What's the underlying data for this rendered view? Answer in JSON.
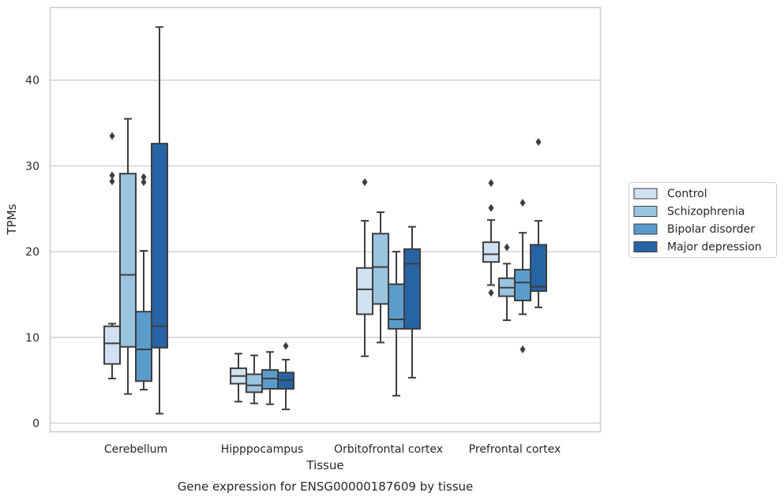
{
  "chart_data": {
    "type": "boxplot",
    "title": "",
    "caption": "Gene expression for ENSG00000187609 by tissue",
    "xlabel": "Tissue",
    "ylabel": "TPMs",
    "ylim": [
      -1,
      48
    ],
    "yticks": [
      0,
      10,
      20,
      30,
      40
    ],
    "grid": "horizontal",
    "legend_position": "right",
    "categories": [
      "Cerebellum",
      "Hipppocampus",
      "Orbitofrontal cortex",
      "Prefrontal cortex"
    ],
    "series": [
      {
        "name": "Control",
        "color": "#d0e1f2",
        "boxes": [
          {
            "whislo": 5.2,
            "q1": 6.9,
            "med": 9.3,
            "q3": 11.3,
            "whishi": 11.6,
            "fliers": [
              28.2,
              28.9,
              33.5
            ]
          },
          {
            "whislo": 2.5,
            "q1": 4.6,
            "med": 5.5,
            "q3": 6.4,
            "whishi": 8.1,
            "fliers": []
          },
          {
            "whislo": 7.8,
            "q1": 12.7,
            "med": 15.6,
            "q3": 18.1,
            "whishi": 23.6,
            "fliers": [
              28.1
            ]
          },
          {
            "whislo": 16.1,
            "q1": 18.8,
            "med": 19.7,
            "q3": 21.1,
            "whishi": 23.7,
            "fliers": [
              15.2,
              25.1,
              28.0
            ]
          }
        ]
      },
      {
        "name": "Schizophrenia",
        "color": "#9ac4e0",
        "boxes": [
          {
            "whislo": 3.4,
            "q1": 8.9,
            "med": 17.3,
            "q3": 29.1,
            "whishi": 35.5,
            "fliers": []
          },
          {
            "whislo": 2.3,
            "q1": 3.6,
            "med": 4.4,
            "q3": 5.7,
            "whishi": 7.9,
            "fliers": []
          },
          {
            "whislo": 9.4,
            "q1": 13.9,
            "med": 18.2,
            "q3": 22.1,
            "whishi": 24.6,
            "fliers": []
          },
          {
            "whislo": 12.0,
            "q1": 14.8,
            "med": 15.8,
            "q3": 16.9,
            "whishi": 18.6,
            "fliers": [
              20.5
            ]
          }
        ]
      },
      {
        "name": "Bipolar disorder",
        "color": "#5a9ccc",
        "boxes": [
          {
            "whislo": 3.9,
            "q1": 4.9,
            "med": 8.6,
            "q3": 13.0,
            "whishi": 20.1,
            "fliers": [
              28.1,
              28.7
            ]
          },
          {
            "whislo": 2.2,
            "q1": 4.0,
            "med": 5.2,
            "q3": 6.2,
            "whishi": 8.3,
            "fliers": []
          },
          {
            "whislo": 3.2,
            "q1": 11.0,
            "med": 12.1,
            "q3": 16.2,
            "whishi": 20.0,
            "fliers": []
          },
          {
            "whislo": 12.7,
            "q1": 14.3,
            "med": 16.4,
            "q3": 17.9,
            "whishi": 22.2,
            "fliers": [
              8.6,
              25.7
            ]
          }
        ]
      },
      {
        "name": "Major depression",
        "color": "#2764a6",
        "boxes": [
          {
            "whislo": 1.1,
            "q1": 8.8,
            "med": 11.3,
            "q3": 32.6,
            "whishi": 46.2,
            "fliers": []
          },
          {
            "whislo": 1.6,
            "q1": 4.0,
            "med": 5.0,
            "q3": 5.9,
            "whishi": 7.4,
            "fliers": [
              9.0
            ]
          },
          {
            "whislo": 5.3,
            "q1": 11.0,
            "med": 18.6,
            "q3": 20.3,
            "whishi": 22.9,
            "fliers": []
          },
          {
            "whislo": 13.5,
            "q1": 15.4,
            "med": 15.9,
            "q3": 20.8,
            "whishi": 23.6,
            "fliers": [
              32.8
            ]
          }
        ]
      }
    ]
  }
}
